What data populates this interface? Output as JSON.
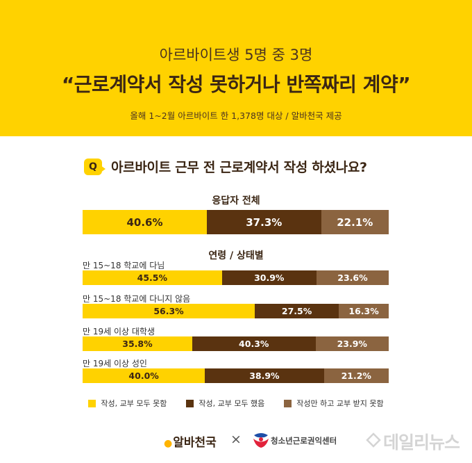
{
  "header": {
    "subtitle": "아르바이트생 5명 중 3명",
    "title": "“근로계약서 작성 못하거나 반쪽짜리 계약”",
    "note": "올해 1~2월 아르바이트 한 1,378명 대상 / 알바천국 제공"
  },
  "question": {
    "badge": "Q",
    "text": "아르바이트 근무 전 근로계약서 작성 하셨나요?"
  },
  "colors": {
    "written": "#ffd200",
    "fully_granted": "#5a3310",
    "not_granted": "#8b6440"
  },
  "chart_data": {
    "type": "bar",
    "orientation": "horizontal",
    "stacked": true,
    "normalized": true,
    "series": [
      {
        "name": "작성, 교부 모두 못함",
        "color": "#ffd200"
      },
      {
        "name": "작성, 교부 모두 했음",
        "color": "#5a3310"
      },
      {
        "name": "작성만 하고 교부 받지 못함",
        "color": "#8b6440"
      }
    ],
    "overall": {
      "title": "응답자 전체",
      "values": [
        40.6,
        37.3,
        22.1
      ],
      "labels": [
        "40.6%",
        "37.3%",
        "22.1%"
      ]
    },
    "groups_title": "연령 / 상태별",
    "groups": [
      {
        "label": "만 15~18 학교에 다님",
        "values": [
          45.5,
          30.9,
          23.6
        ],
        "labels": [
          "45.5%",
          "30.9%",
          "23.6%"
        ]
      },
      {
        "label": "만 15~18 학교에 다니지 않음",
        "values": [
          56.3,
          27.5,
          16.3
        ],
        "labels": [
          "56.3%",
          "27.5%",
          "16.3%"
        ]
      },
      {
        "label": "만 19세 이상 대학생",
        "values": [
          35.8,
          40.3,
          23.9
        ],
        "labels": [
          "35.8%",
          "40.3%",
          "23.9%"
        ]
      },
      {
        "label": "만 19세 이상 성인",
        "values": [
          40.0,
          38.9,
          21.2
        ],
        "labels": [
          "40.0%",
          "38.9%",
          "21.2%"
        ]
      }
    ]
  },
  "footer": {
    "logo_left": "알바천국",
    "separator": "×",
    "logo_right": "청소년근로권익센터",
    "watermark": "데일리뉴스"
  }
}
